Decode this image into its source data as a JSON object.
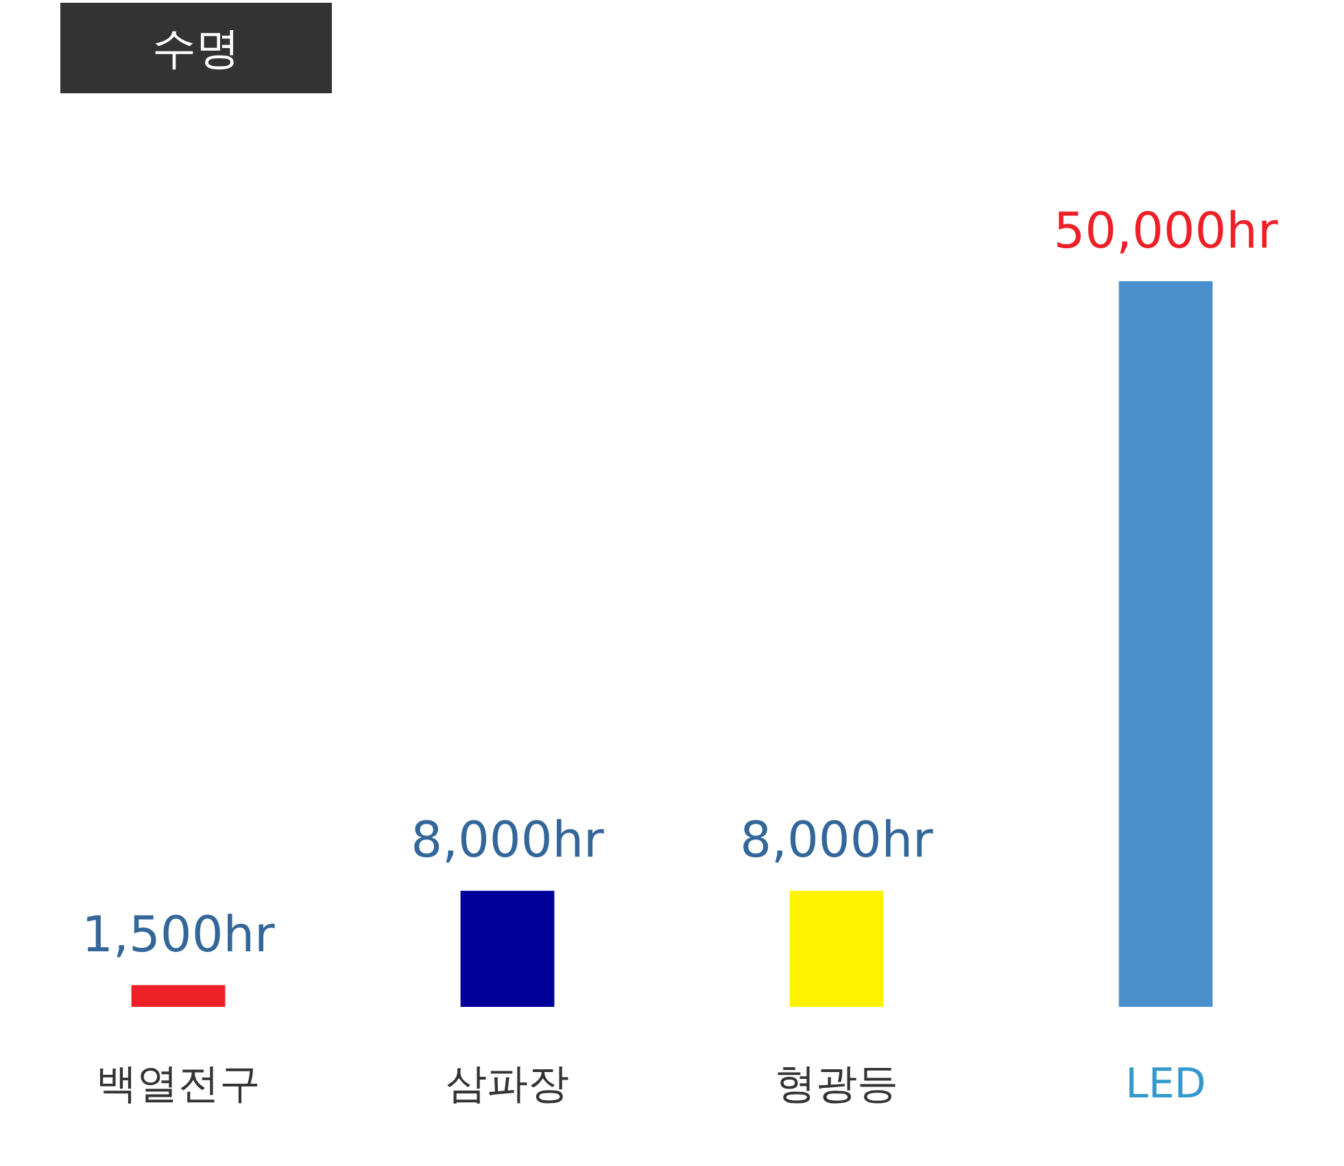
{
  "chart_data": {
    "type": "bar",
    "title": "수명",
    "categories": [
      "백열전구",
      "삼파장",
      "형광등",
      "LED"
    ],
    "values": [
      1500,
      8000,
      8000,
      50000
    ],
    "colors": [
      "#ee2027",
      "#000099",
      "#fff200",
      "#4a90cd"
    ],
    "value_labels": [
      "1,500hr",
      "8,000hr",
      "8,000hr",
      "50,000hr"
    ],
    "grid": false,
    "legend": false,
    "tick_labels": "x"
  }
}
